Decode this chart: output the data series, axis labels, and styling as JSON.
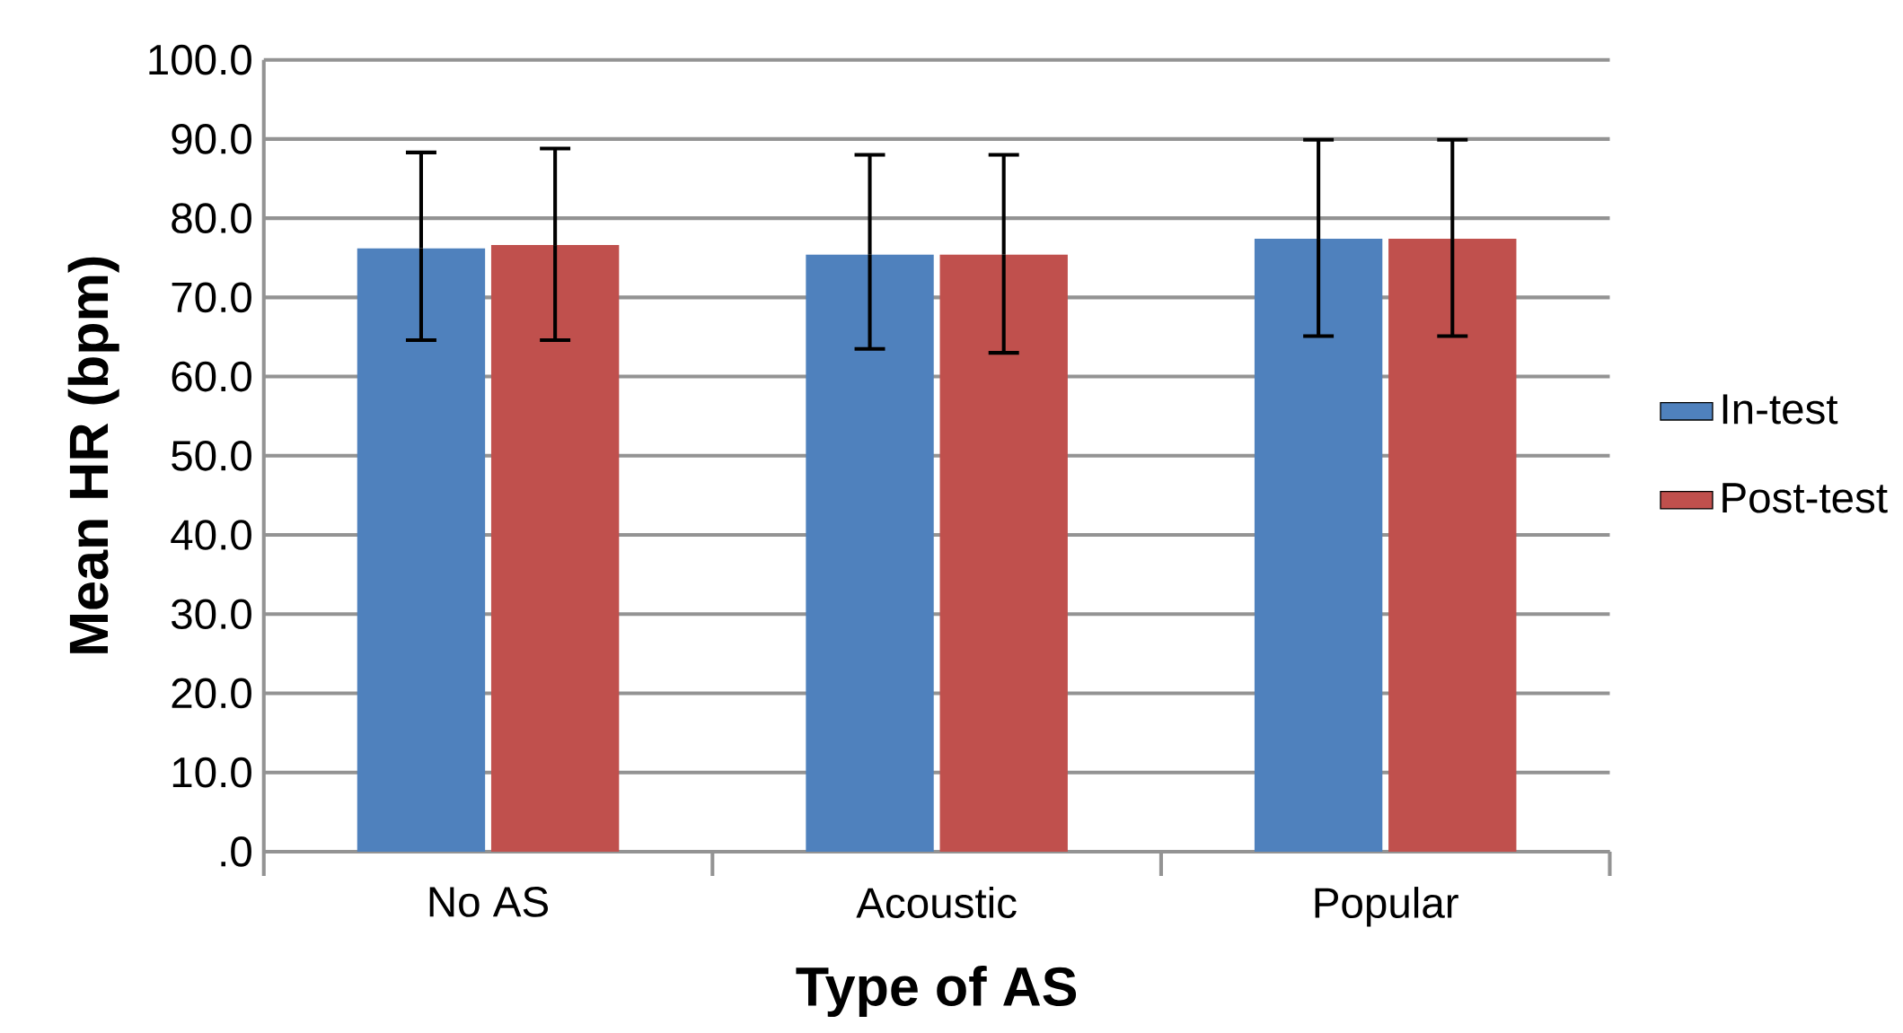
{
  "chart_data": {
    "type": "bar",
    "xlabel": "Type of AS",
    "ylabel": "Mean HR (bpm)",
    "categories": [
      "No AS",
      "Acoustic",
      "Popular"
    ],
    "series": [
      {
        "name": "In-test",
        "color": "#4f81bd",
        "values": [
          76.2,
          75.4,
          77.4
        ],
        "errors": [
          [
            64.6,
            88.3
          ],
          [
            63.5,
            88.0
          ],
          [
            65.1,
            89.9
          ]
        ]
      },
      {
        "name": "Post-test",
        "color": "#c0504d",
        "values": [
          76.6,
          75.4,
          77.4
        ],
        "errors": [
          [
            64.6,
            88.8
          ],
          [
            63.0,
            88.0
          ],
          [
            65.1,
            89.9
          ]
        ]
      }
    ],
    "ylim": [
      0,
      100
    ],
    "yticks": [
      {
        "value": 0,
        "label": ".0"
      },
      {
        "value": 10,
        "label": "10.0"
      },
      {
        "value": 20,
        "label": "20.0"
      },
      {
        "value": 30,
        "label": "30.0"
      },
      {
        "value": 40,
        "label": "40.0"
      },
      {
        "value": 50,
        "label": "50.0"
      },
      {
        "value": 60,
        "label": "60.0"
      },
      {
        "value": 70,
        "label": "70.0"
      },
      {
        "value": 80,
        "label": "80.0"
      },
      {
        "value": 90,
        "label": "90.0"
      },
      {
        "value": 100,
        "label": "100.0"
      }
    ],
    "grid": "y",
    "legend": "right"
  }
}
